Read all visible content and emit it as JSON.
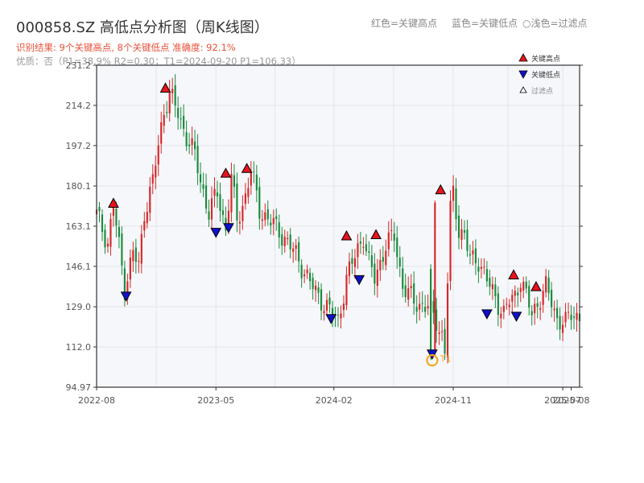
{
  "header": {
    "title": "000858.SZ 高低点分析图（周K线图）",
    "legend_red": "红色=关键高点",
    "legend_blue": "蓝色=关键低点",
    "legend_gray": "○浅色=过滤点",
    "info_line1": "识别结果: 9个关键高点, 8个关键低点  准确度: 92.1%",
    "info_line2": "优质：否（P1=38.9%  R2=0.30；T1=2024-09-20 P1=106.33）"
  },
  "colors": {
    "up": "#d62728",
    "down": "#1a8a3c",
    "high_marker": "#e8141e",
    "low_marker": "#1010cc",
    "t1_marker": "#f5a623",
    "plot_bg": "#f5f7fa"
  },
  "chart_data": {
    "type": "candlestick",
    "title": "000858.SZ 高低点分析图（周K线图）",
    "ylim": [
      94.97,
      231.2
    ],
    "y_ticks": [
      "94.97",
      "112.0",
      "129.0",
      "146.1",
      "163.1",
      "180.1",
      "197.2",
      "214.2",
      "231.2"
    ],
    "y_tick_values": [
      94.97,
      112.0,
      129.0,
      146.1,
      163.1,
      180.1,
      197.2,
      214.2,
      231.2
    ],
    "x_ticks": [
      "2022-08",
      "2023-05",
      "2024-02",
      "2024-11",
      "2025-07",
      "2025-08"
    ],
    "x_tick_positions": [
      0.0,
      42.5,
      84.5,
      127.0,
      166.0,
      169.0
    ],
    "x_range": [
      0.0,
      172.0
    ],
    "legend": [
      "关键高点",
      "关键低点",
      "过滤点"
    ],
    "anchors": [
      [
        0,
        168
      ],
      [
        4,
        156
      ],
      [
        6,
        172
      ],
      [
        10,
        137
      ],
      [
        13,
        152
      ],
      [
        15,
        146
      ],
      [
        17,
        169
      ],
      [
        20,
        182
      ],
      [
        24,
        212
      ],
      [
        26,
        220
      ],
      [
        30,
        207
      ],
      [
        35,
        193
      ],
      [
        37,
        182
      ],
      [
        40,
        169
      ],
      [
        43,
        177
      ],
      [
        46,
        162
      ],
      [
        48,
        184
      ],
      [
        50,
        165
      ],
      [
        53,
        176
      ],
      [
        55,
        187
      ],
      [
        58,
        170
      ],
      [
        62,
        165
      ],
      [
        67,
        158
      ],
      [
        71,
        151
      ],
      [
        74,
        144
      ],
      [
        78,
        135
      ],
      [
        82,
        129
      ],
      [
        86,
        123
      ],
      [
        89,
        141
      ],
      [
        90,
        144
      ],
      [
        93,
        154
      ],
      [
        95,
        159
      ],
      [
        97,
        147
      ],
      [
        99,
        141
      ],
      [
        103,
        155
      ],
      [
        106,
        159
      ],
      [
        109,
        138
      ],
      [
        113,
        131
      ],
      [
        118,
        129
      ],
      [
        121,
        123
      ],
      [
        123,
        117
      ],
      [
        124,
        110
      ],
      [
        126,
        170
      ],
      [
        127,
        177
      ],
      [
        129,
        162
      ],
      [
        131,
        159
      ],
      [
        133,
        149
      ],
      [
        136,
        149
      ],
      [
        139,
        140
      ],
      [
        142,
        133
      ],
      [
        145,
        126
      ],
      [
        147,
        131
      ],
      [
        149,
        134
      ],
      [
        151,
        141
      ],
      [
        153,
        133
      ],
      [
        155,
        126
      ],
      [
        158,
        133
      ],
      [
        160,
        137
      ],
      [
        162,
        131
      ],
      [
        164,
        124
      ],
      [
        167,
        122
      ],
      [
        169,
        126
      ],
      [
        172,
        125
      ]
    ],
    "key_highs": [
      {
        "x": 6,
        "price": 172.8
      },
      {
        "x": 24.5,
        "price": 221.5
      },
      {
        "x": 46,
        "price": 185.5
      },
      {
        "x": 53.5,
        "price": 187.5
      },
      {
        "x": 89,
        "price": 159.0
      },
      {
        "x": 99.5,
        "price": 159.5
      },
      {
        "x": 122.5,
        "price": 178.5
      },
      {
        "x": 148.5,
        "price": 142.5
      },
      {
        "x": 156.5,
        "price": 137.5
      }
    ],
    "key_lows": [
      {
        "x": 10.5,
        "price": 133.5
      },
      {
        "x": 42.5,
        "price": 160.5
      },
      {
        "x": 47,
        "price": 162.5
      },
      {
        "x": 83.5,
        "price": 124.0
      },
      {
        "x": 93.5,
        "price": 140.5
      },
      {
        "x": 119.5,
        "price": 109.0
      },
      {
        "x": 139,
        "price": 126.0
      },
      {
        "x": 149.5,
        "price": 125.0
      }
    ],
    "t1": {
      "label": "T1",
      "x": 119.5,
      "price": 106.33
    }
  }
}
